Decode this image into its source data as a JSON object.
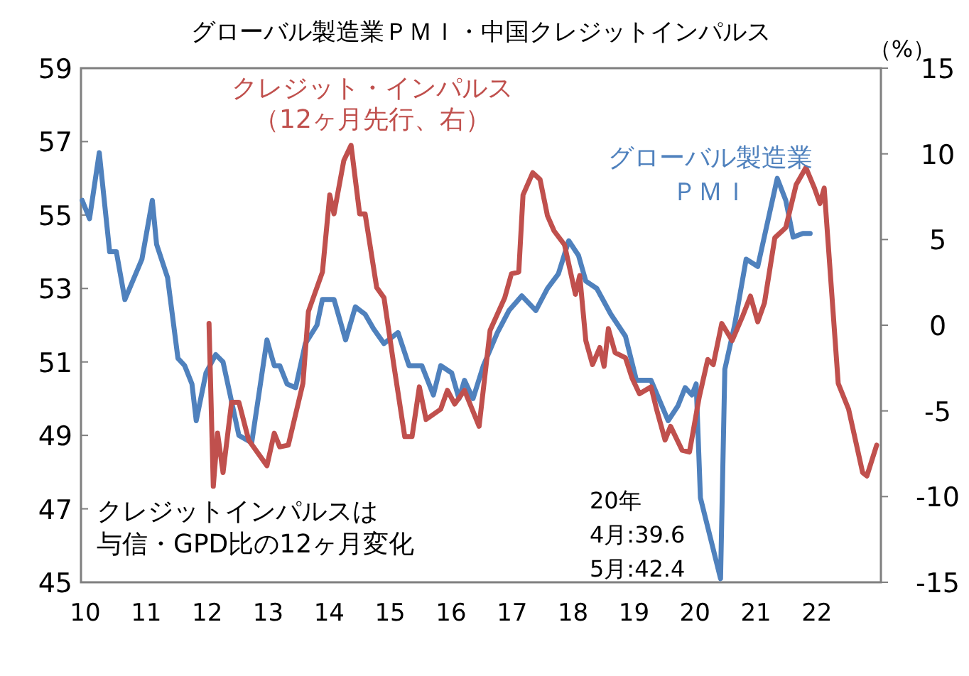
{
  "chart_data": {
    "type": "line",
    "title": "グローバル製造業ＰＭＩ・中国クレジットインパルス",
    "y2label": "（%）",
    "xlim": [
      2009.93,
      2023.05
    ],
    "xticks": [
      {
        "value": 2010,
        "label": "10"
      },
      {
        "value": 2011,
        "label": "11"
      },
      {
        "value": 2012,
        "label": "12"
      },
      {
        "value": 2013,
        "label": "13"
      },
      {
        "value": 2014,
        "label": "14"
      },
      {
        "value": 2015,
        "label": "15"
      },
      {
        "value": 2016,
        "label": "16"
      },
      {
        "value": 2017,
        "label": "17"
      },
      {
        "value": 2018,
        "label": "18"
      },
      {
        "value": 2019,
        "label": "19"
      },
      {
        "value": 2020,
        "label": "20"
      },
      {
        "value": 2021,
        "label": "21"
      },
      {
        "value": 2022,
        "label": "22"
      }
    ],
    "ylim": [
      45,
      59
    ],
    "yticks": [
      45,
      47,
      49,
      51,
      53,
      55,
      57,
      59
    ],
    "y2lim": [
      -15,
      15
    ],
    "y2ticks": [
      -15,
      -10,
      -5,
      0,
      5,
      10,
      15
    ],
    "series": [
      {
        "name": "グローバル製造業ＰＭＩ",
        "color": "#4f81bd",
        "x": [
          2009.95,
          2010.07,
          2010.23,
          2010.4,
          2010.51,
          2010.65,
          2010.93,
          2011.1,
          2011.17,
          2011.35,
          2011.52,
          2011.63,
          2011.75,
          2011.82,
          2011.98,
          2012.14,
          2012.26,
          2012.52,
          2012.73,
          2012.98,
          2013.1,
          2013.19,
          2013.31,
          2013.45,
          2013.61,
          2013.8,
          2013.89,
          2014.08,
          2014.27,
          2014.43,
          2014.59,
          2014.73,
          2014.9,
          2015.13,
          2015.31,
          2015.52,
          2015.71,
          2015.83,
          2016.01,
          2016.13,
          2016.22,
          2016.36,
          2016.53,
          2016.76,
          2016.95,
          2017.16,
          2017.39,
          2017.58,
          2017.76,
          2017.93,
          2018.09,
          2018.21,
          2018.39,
          2018.62,
          2018.86,
          2019.04,
          2019.28,
          2019.56,
          2019.72,
          2019.84,
          2019.95,
          2020.02,
          2020.09,
          2020.42,
          2020.49,
          2020.65,
          2020.84,
          2021.03,
          2021.35,
          2021.49,
          2021.61,
          2021.77,
          2021.89
        ],
        "values": [
          55.4,
          54.9,
          56.7,
          54.0,
          54.0,
          52.7,
          53.8,
          55.4,
          54.2,
          53.3,
          51.1,
          50.9,
          50.4,
          49.4,
          50.7,
          51.2,
          51.0,
          49.0,
          48.8,
          51.6,
          50.9,
          50.9,
          50.4,
          50.3,
          51.5,
          52.0,
          52.7,
          52.7,
          51.6,
          52.5,
          52.3,
          51.9,
          51.5,
          51.8,
          50.9,
          50.9,
          50.1,
          50.9,
          50.7,
          50.0,
          50.5,
          50.0,
          50.9,
          51.8,
          52.4,
          52.8,
          52.4,
          53.0,
          53.4,
          54.3,
          53.9,
          53.2,
          53.0,
          52.3,
          51.7,
          50.5,
          50.5,
          49.4,
          49.8,
          50.3,
          50.1,
          50.4,
          47.3,
          45.1,
          50.8,
          52.0,
          53.8,
          53.6,
          56.0,
          55.4,
          54.4,
          54.5,
          54.5
        ]
      },
      {
        "name": "クレジット・インパルス（12ヶ月先行、右）",
        "color": "#c0504d",
        "axis": "y2",
        "x": [
          2012.03,
          2012.1,
          2012.17,
          2012.26,
          2012.4,
          2012.52,
          2012.68,
          2012.98,
          2013.1,
          2013.19,
          2013.33,
          2013.57,
          2013.66,
          2013.89,
          2014.01,
          2014.08,
          2014.24,
          2014.36,
          2014.5,
          2014.59,
          2014.78,
          2014.9,
          2015.06,
          2015.24,
          2015.36,
          2015.48,
          2015.59,
          2015.83,
          2015.94,
          2016.06,
          2016.22,
          2016.46,
          2016.64,
          2016.88,
          2016.99,
          2017.11,
          2017.18,
          2017.34,
          2017.46,
          2017.58,
          2017.69,
          2017.86,
          2018.04,
          2018.11,
          2018.21,
          2018.32,
          2018.44,
          2018.51,
          2018.58,
          2018.69,
          2018.86,
          2018.97,
          2019.09,
          2019.28,
          2019.37,
          2019.51,
          2019.6,
          2019.79,
          2019.91,
          2020.07,
          2020.21,
          2020.3,
          2020.44,
          2020.61,
          2020.79,
          2020.91,
          2021.03,
          2021.14,
          2021.31,
          2021.49,
          2021.66,
          2021.82,
          2021.96,
          2022.05,
          2022.12,
          2022.35,
          2022.52,
          2022.75,
          2022.82,
          2022.98
        ],
        "values": [
          0.1,
          -9.4,
          -6.3,
          -8.6,
          -4.5,
          -4.5,
          -6.7,
          -8.2,
          -6.3,
          -7.1,
          -7.0,
          -3.4,
          0.8,
          3.1,
          7.6,
          6.5,
          9.6,
          10.5,
          6.5,
          6.5,
          2.2,
          1.6,
          -2.3,
          -6.5,
          -6.5,
          -3.6,
          -5.5,
          -4.9,
          -3.8,
          -4.6,
          -3.8,
          -5.9,
          -0.3,
          1.6,
          3.0,
          3.1,
          7.6,
          8.9,
          8.5,
          6.4,
          5.5,
          4.7,
          1.8,
          2.9,
          -0.9,
          -2.3,
          -1.3,
          -2.4,
          -0.2,
          -1.6,
          -1.9,
          -3.1,
          -4.0,
          -3.6,
          -4.9,
          -6.7,
          -5.9,
          -7.3,
          -7.4,
          -4.2,
          -2.0,
          -2.3,
          0.1,
          -0.9,
          0.6,
          1.7,
          0.2,
          1.3,
          5.1,
          5.7,
          8.2,
          9.2,
          8.0,
          7.1,
          8.0,
          -3.4,
          -4.9,
          -8.6,
          -8.8,
          -7.0
        ]
      }
    ],
    "annotations": [
      "クレジットインパルスは与信・GPD比の12ヶ月変化",
      "20年\n4月:39.6\n5月:42.4"
    ]
  }
}
